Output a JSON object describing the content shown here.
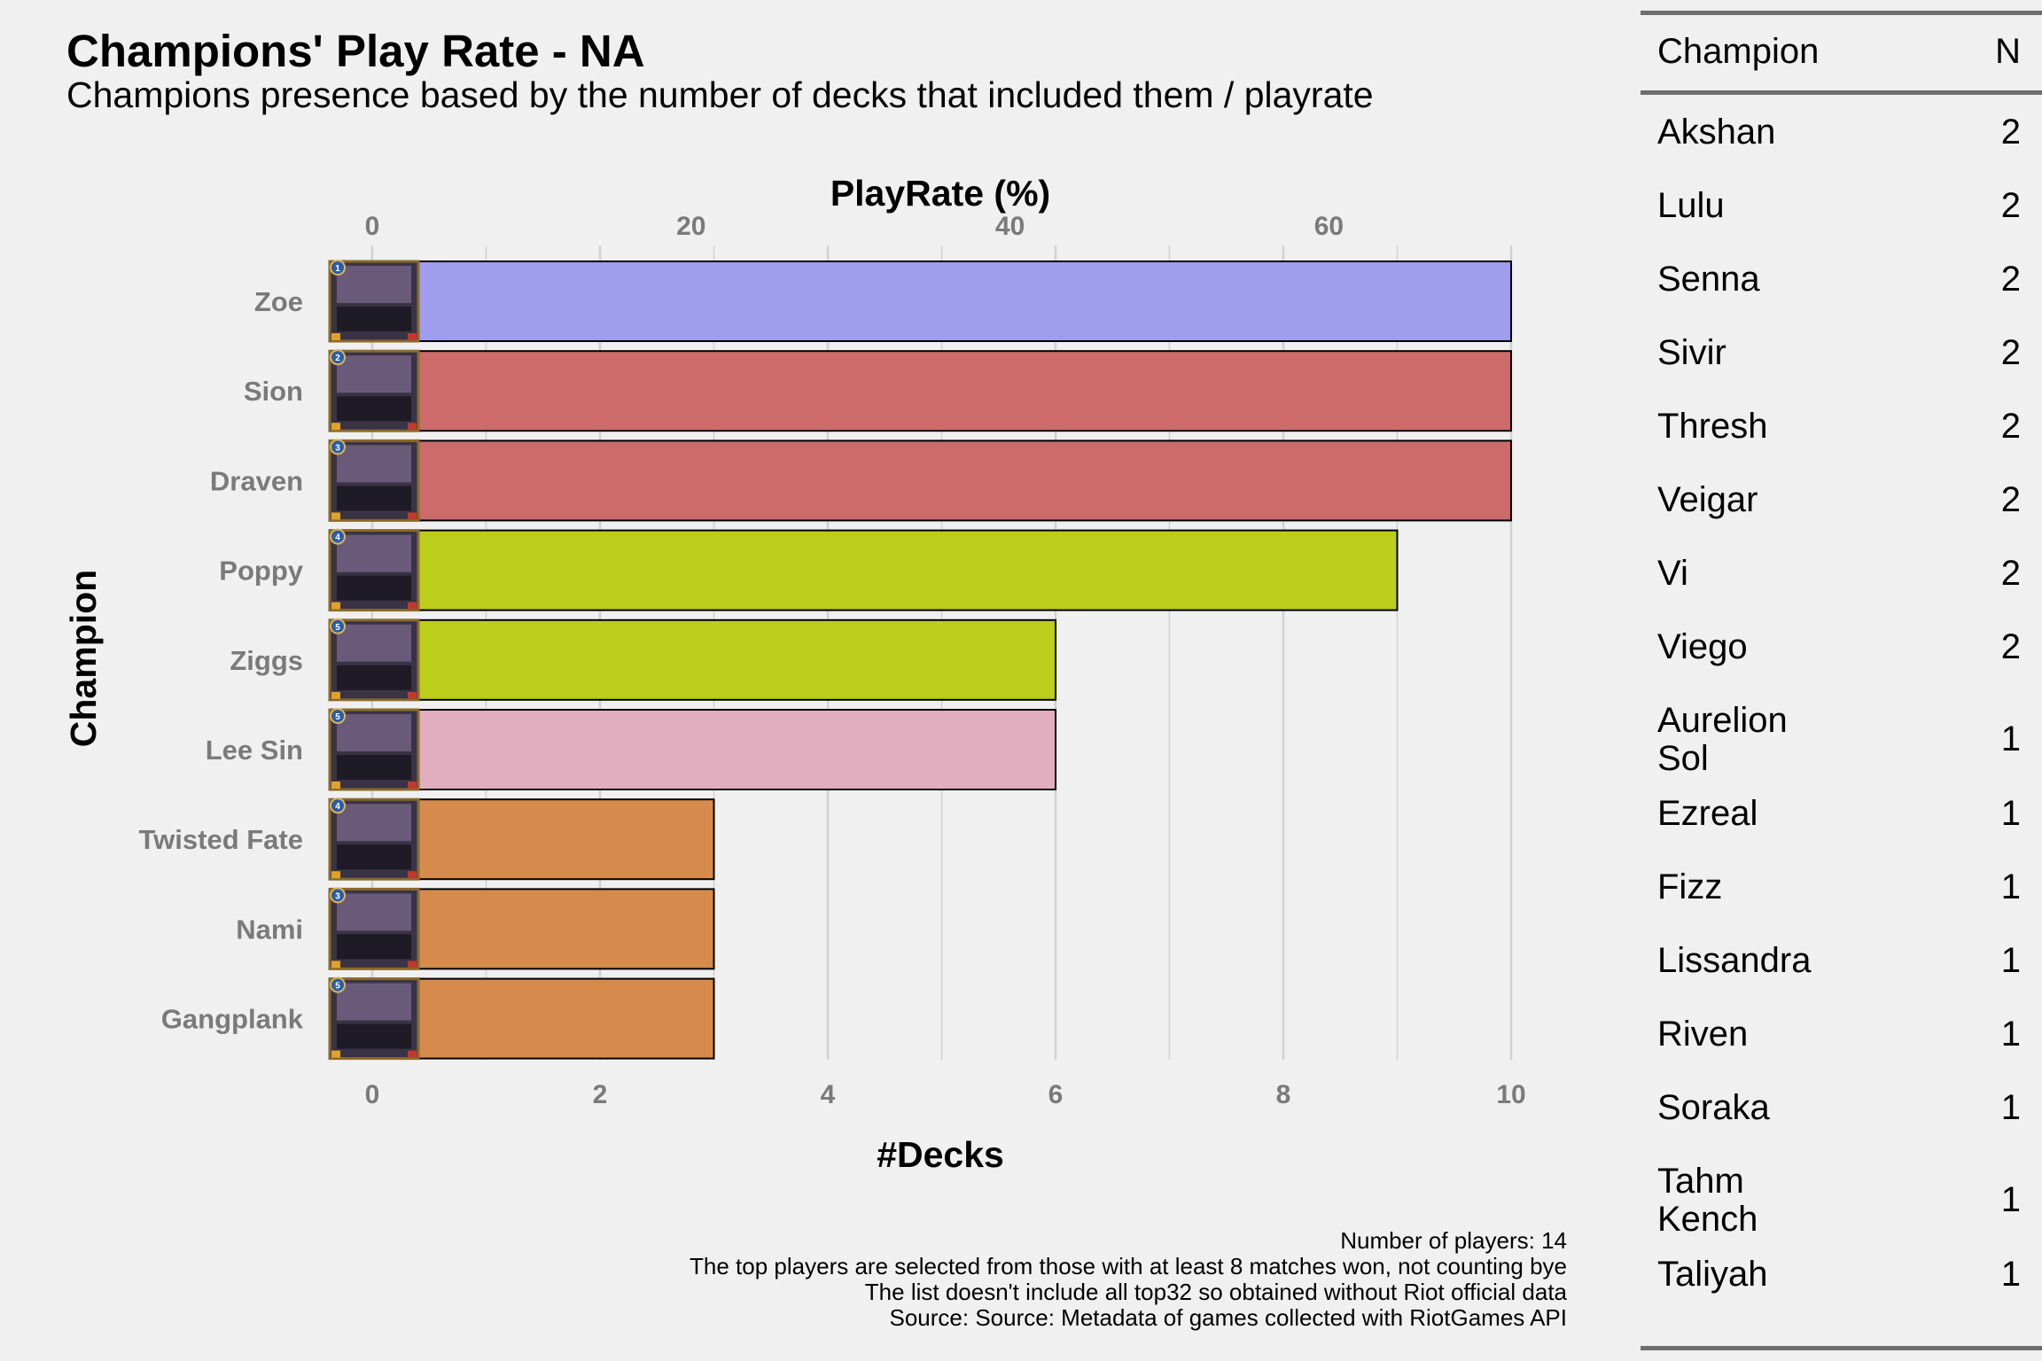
{
  "title": "Champions' Play Rate - NA",
  "subtitle": "Champions presence based by the number of decks that included them / playrate",
  "caption": [
    "Number of players: 14",
    "The top players are selected from those with at least 8 matches won, not counting bye",
    "The list doesn't include all top32 so obtained without Riot official data",
    "Source: Source: Metadata of games collected with RiotGames API"
  ],
  "chart_data": {
    "type": "bar",
    "orientation": "horizontal",
    "ylabel": "Champion",
    "xlabel": "#Decks",
    "x2label": "PlayRate (%)",
    "categories": [
      "Zoe",
      "Sion",
      "Draven",
      "Poppy",
      "Ziggs",
      "Lee Sin",
      "Twisted Fate",
      "Nami",
      "Gangplank"
    ],
    "values": [
      10,
      10,
      10,
      9,
      6,
      6,
      3,
      3,
      3
    ],
    "colors": [
      "#a09cee",
      "#cd6b6b",
      "#cd6b6b",
      "#bccd1a",
      "#bccd1a",
      "#e0aebf",
      "#d68b4c",
      "#d68b4c",
      "#d68b4c"
    ],
    "card_costs": [
      "1",
      "2",
      "3",
      "4",
      "5",
      "5",
      "4",
      "3",
      "5"
    ],
    "xlim": [
      0,
      10
    ],
    "xticks": [
      "0",
      "2",
      "4",
      "6",
      "8",
      "10"
    ],
    "x2ticks": [
      "0",
      "20",
      "40",
      "60"
    ],
    "x2_scale_max_percent": 71.43,
    "grid": true,
    "legend": "none"
  },
  "table": {
    "headers": [
      "Champion",
      "N"
    ],
    "rows": [
      {
        "name": "Akshan",
        "n": "2"
      },
      {
        "name": "Lulu",
        "n": "2"
      },
      {
        "name": "Senna",
        "n": "2"
      },
      {
        "name": "Sivir",
        "n": "2"
      },
      {
        "name": "Thresh",
        "n": "2"
      },
      {
        "name": "Veigar",
        "n": "2"
      },
      {
        "name": "Vi",
        "n": "2"
      },
      {
        "name": "Viego",
        "n": "2"
      },
      {
        "name": "Aurelion\nSol",
        "n": "1"
      },
      {
        "name": "Ezreal",
        "n": "1"
      },
      {
        "name": "Fizz",
        "n": "1"
      },
      {
        "name": "Lissandra",
        "n": "1"
      },
      {
        "name": "Riven",
        "n": "1"
      },
      {
        "name": "Soraka",
        "n": "1"
      },
      {
        "name": "Tahm\nKench",
        "n": "1"
      },
      {
        "name": "Taliyah",
        "n": "1"
      }
    ]
  }
}
